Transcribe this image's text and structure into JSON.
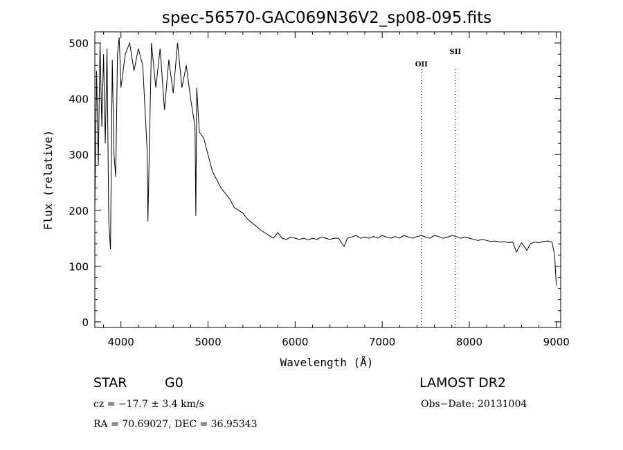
{
  "chart_data": {
    "type": "line",
    "title": "spec-56570-GAC069N36V2_sp08-095.fits",
    "xlabel": "Wavelength (Å)",
    "ylabel": "Flux (relative)",
    "xlim": [
      3700,
      9050
    ],
    "ylim": [
      -10,
      520
    ],
    "xticks": [
      4000,
      5000,
      6000,
      7000,
      8000,
      9000
    ],
    "yticks": [
      0,
      100,
      200,
      300,
      400,
      500
    ],
    "grid": false,
    "series": [
      {
        "x": [
          3700,
          3720,
          3740,
          3760,
          3780,
          3800,
          3820,
          3840,
          3860,
          3880,
          3900,
          3920,
          3940,
          3960,
          3980,
          4000,
          4050,
          4100,
          4150,
          4200,
          4250,
          4300,
          4310,
          4350,
          4400,
          4450,
          4500,
          4550,
          4600,
          4650,
          4700,
          4750,
          4800,
          4850,
          4860,
          4870,
          4900,
          4950,
          5000,
          5050,
          5100,
          5150,
          5200,
          5250,
          5300,
          5350,
          5400,
          5450,
          5500,
          5550,
          5600,
          5650,
          5700,
          5750,
          5800,
          5850,
          5900,
          5950,
          6000,
          6050,
          6100,
          6150,
          6200,
          6250,
          6300,
          6350,
          6400,
          6450,
          6500,
          6563,
          6600,
          6650,
          6700,
          6750,
          6800,
          6850,
          6900,
          6950,
          7000,
          7050,
          7100,
          7150,
          7200,
          7250,
          7300,
          7350,
          7400,
          7450,
          7500,
          7550,
          7600,
          7650,
          7700,
          7750,
          7800,
          7850,
          7900,
          7950,
          8000,
          8050,
          8100,
          8150,
          8200,
          8250,
          8300,
          8350,
          8400,
          8450,
          8500,
          8542,
          8600,
          8662,
          8700,
          8750,
          8800,
          8850,
          8900,
          8950,
          8980,
          9000
        ],
        "y": [
          200,
          450,
          280,
          500,
          350,
          480,
          320,
          490,
          180,
          130,
          470,
          300,
          260,
          480,
          510,
          420,
          480,
          500,
          450,
          490,
          460,
          310,
          180,
          500,
          420,
          490,
          380,
          470,
          410,
          500,
          420,
          460,
          400,
          350,
          190,
          420,
          340,
          330,
          300,
          270,
          255,
          240,
          230,
          220,
          205,
          200,
          195,
          185,
          178,
          172,
          165,
          160,
          155,
          150,
          160,
          150,
          148,
          152,
          150,
          148,
          150,
          147,
          150,
          148,
          152,
          150,
          148,
          150,
          150,
          135,
          150,
          152,
          155,
          150,
          152,
          150,
          153,
          150,
          155,
          152,
          150,
          153,
          150,
          155,
          152,
          150,
          153,
          155,
          152,
          150,
          155,
          153,
          150,
          152,
          155,
          153,
          150,
          152,
          150,
          148,
          146,
          148,
          146,
          144,
          145,
          143,
          144,
          142,
          143,
          125,
          142,
          128,
          140,
          143,
          142,
          144,
          145,
          143,
          120,
          65
        ]
      }
    ],
    "annotations": [
      {
        "label": "OII",
        "x": 7450
      },
      {
        "label": "SII",
        "x": 7840
      }
    ]
  },
  "info": {
    "class": "STAR",
    "subclass": "G0",
    "survey": "LAMOST DR2",
    "cz": "cz = −17.7 ± 3.4 km/s",
    "obsdate": "Obs−Date: 20131004",
    "radec": "RA =  70.69027, DEC =  36.95343"
  }
}
